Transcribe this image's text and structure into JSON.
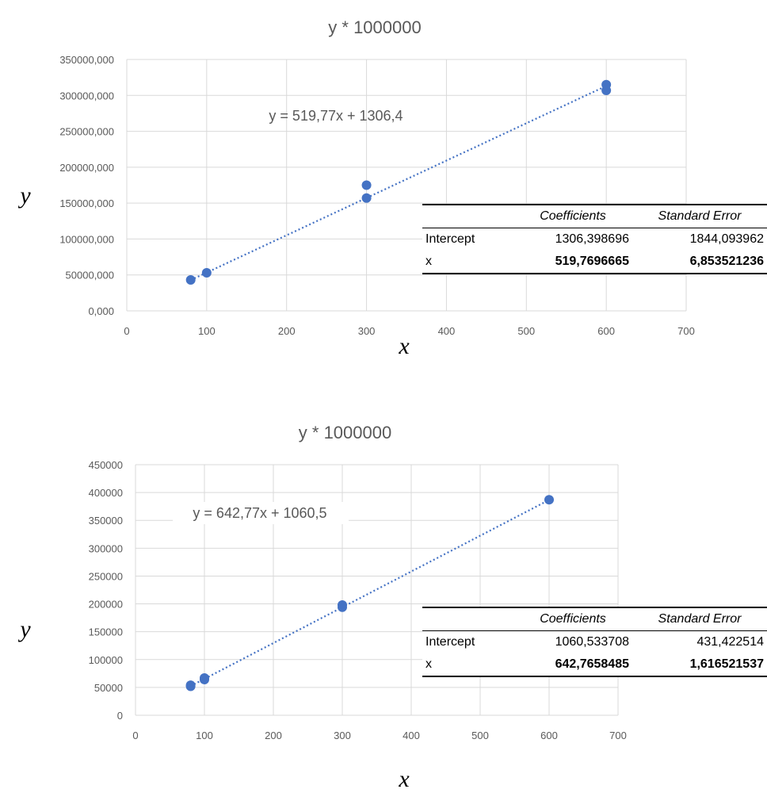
{
  "chart_data": [
    {
      "type": "scatter",
      "title": "y * 1000000",
      "xlabel": "x",
      "ylabel": "y",
      "xlim": [
        0,
        700
      ],
      "ylim": [
        0,
        350000
      ],
      "x_ticks": [
        "0",
        "100",
        "200",
        "300",
        "400",
        "500",
        "600",
        "700"
      ],
      "y_ticks": [
        "0,000",
        "50000,000",
        "100000,000",
        "150000,000",
        "200000,000",
        "250000,000",
        "300000,000",
        "350000,000"
      ],
      "grid": true,
      "marker_color": "#4472C4",
      "points": [
        {
          "x": 80,
          "y": 43000
        },
        {
          "x": 100,
          "y": 53000
        },
        {
          "x": 300,
          "y": 157000
        },
        {
          "x": 300,
          "y": 175000
        },
        {
          "x": 600,
          "y": 307000
        },
        {
          "x": 600,
          "y": 315000
        }
      ],
      "trendline": {
        "slope": 519.77,
        "intercept": 1306.4,
        "style": "dotted",
        "x_range": [
          80,
          600
        ]
      },
      "equation": "y = 519,77x + 1306,4",
      "table": {
        "headers": [
          "",
          "Coefficients",
          "Standard Error"
        ],
        "rows": [
          [
            "Intercept",
            "1306,398696",
            "1844,093962"
          ],
          [
            "x",
            "519,7696665",
            "6,853521236"
          ]
        ]
      }
    },
    {
      "type": "scatter",
      "title": "y * 1000000",
      "xlabel": "x",
      "ylabel": "y",
      "xlim": [
        0,
        700
      ],
      "ylim": [
        0,
        450000
      ],
      "x_ticks": [
        "0",
        "100",
        "200",
        "300",
        "400",
        "500",
        "600",
        "700"
      ],
      "y_ticks": [
        "0",
        "50000",
        "100000",
        "150000",
        "200000",
        "250000",
        "300000",
        "350000",
        "400000",
        "450000"
      ],
      "grid": true,
      "marker_color": "#4472C4",
      "points": [
        {
          "x": 80,
          "y": 52000
        },
        {
          "x": 80,
          "y": 54000
        },
        {
          "x": 100,
          "y": 64000
        },
        {
          "x": 100,
          "y": 67000
        },
        {
          "x": 300,
          "y": 194000
        },
        {
          "x": 300,
          "y": 198000
        },
        {
          "x": 600,
          "y": 387000
        }
      ],
      "trendline": {
        "slope": 642.77,
        "intercept": 1060.5,
        "style": "dotted",
        "x_range": [
          80,
          600
        ]
      },
      "equation": "y = 642,77x + 1060,5",
      "table": {
        "headers": [
          "",
          "Coefficients",
          "Standard Error"
        ],
        "rows": [
          [
            "Intercept",
            "1060,533708",
            "431,422514"
          ],
          [
            "x",
            "642,7658485",
            "1,616521537"
          ]
        ]
      }
    }
  ]
}
